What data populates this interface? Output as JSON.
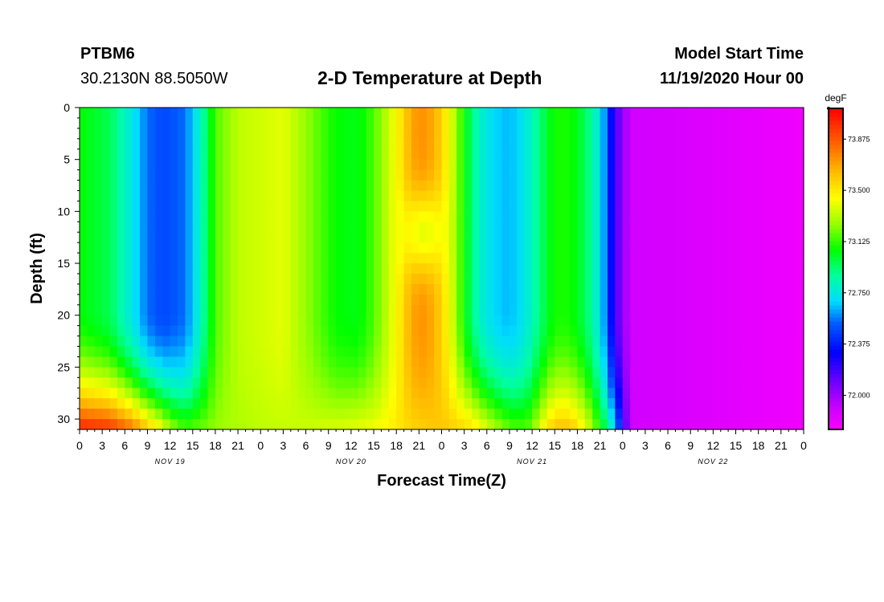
{
  "header": {
    "station_id": "PTBM6",
    "coordinates": "30.2130N 88.5050W",
    "title": "2-D Temperature at Depth",
    "model_label": "Model Start Time",
    "model_time": "11/19/2020 Hour 00"
  },
  "chart_data": {
    "type": "heatmap",
    "title": "2-D Temperature at Depth",
    "xlabel": "Forecast Time(Z)",
    "ylabel": "Depth (ft)",
    "x_hours_range": [
      0,
      96
    ],
    "y_range": [
      0,
      31
    ],
    "x_tick_labels": [
      "0",
      "3",
      "6",
      "9",
      "12",
      "15",
      "18",
      "21",
      "0",
      "3",
      "6",
      "9",
      "12",
      "15",
      "18",
      "21",
      "0",
      "3",
      "6",
      "9",
      "12",
      "15",
      "18",
      "21",
      "0",
      "3",
      "6",
      "9",
      "12",
      "15",
      "18",
      "21",
      "0"
    ],
    "day_labels": [
      {
        "label": "NOV 19",
        "hour": 12
      },
      {
        "label": "NOV 20",
        "hour": 36
      },
      {
        "label": "NOV 21",
        "hour": 60
      },
      {
        "label": "NOV 22",
        "hour": 84
      }
    ],
    "y_ticks": [
      0,
      5,
      10,
      15,
      20,
      25,
      30
    ],
    "y_tick_labels": [
      "0",
      "5",
      "10",
      "15",
      "20",
      "25",
      "30"
    ],
    "colorbar": {
      "unit": "degF",
      "min": 71.75,
      "max": 74.1,
      "ticks": [
        73.875,
        73.5,
        73.125,
        72.75,
        72.375,
        72.0
      ],
      "tick_labels": [
        "73.875",
        "73.500",
        "73.125",
        "72.750",
        "72.375",
        "72.000"
      ]
    }
  }
}
